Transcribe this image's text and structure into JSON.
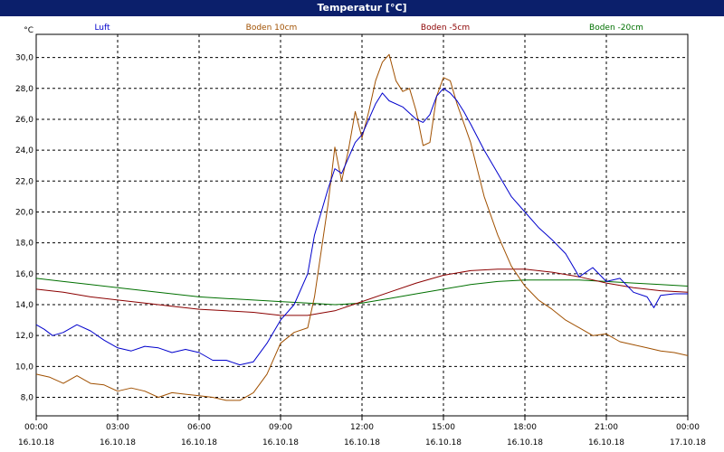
{
  "window": {
    "title": "Temperatur [°C]"
  },
  "chart_data": {
    "type": "line",
    "title": "Temperatur [°C]",
    "ylabel": "°C",
    "ylim": [
      6.8,
      31.5
    ],
    "xlim": [
      0,
      24
    ],
    "y_ticks": [
      "8,0",
      "10,0",
      "12,0",
      "14,0",
      "16,0",
      "18,0",
      "20,0",
      "22,0",
      "24,0",
      "26,0",
      "28,0",
      "30,0"
    ],
    "x_ticks": [
      {
        "time": "00:00",
        "date": "16.10.18"
      },
      {
        "time": "03:00",
        "date": "16.10.18"
      },
      {
        "time": "06:00",
        "date": "16.10.18"
      },
      {
        "time": "09:00",
        "date": "16.10.18"
      },
      {
        "time": "12:00",
        "date": "16.10.18"
      },
      {
        "time": "15:00",
        "date": "16.10.18"
      },
      {
        "time": "18:00",
        "date": "16.10.18"
      },
      {
        "time": "21:00",
        "date": "16.10.18"
      },
      {
        "time": "00:00",
        "date": "17.10.18"
      }
    ],
    "grid": true,
    "legend_position": "top",
    "series": [
      {
        "name": "Luft",
        "color": "#0000cc",
        "x": [
          0,
          0.3,
          0.6,
          1,
          1.5,
          2,
          2.5,
          3,
          3.5,
          4,
          4.5,
          5,
          5.5,
          6,
          6.5,
          7,
          7.5,
          8,
          8.5,
          9,
          9.5,
          10,
          10.25,
          10.5,
          10.75,
          11,
          11.25,
          11.5,
          11.75,
          12,
          12.25,
          12.5,
          12.75,
          13,
          13.5,
          14,
          14.25,
          14.5,
          14.75,
          15,
          15.25,
          15.5,
          15.75,
          16,
          16.5,
          17,
          17.5,
          18,
          18.5,
          19,
          19.5,
          20,
          20.5,
          21,
          21.5,
          22,
          22.5,
          22.75,
          23,
          23.5,
          24
        ],
        "y": [
          12.7,
          12.4,
          12.0,
          12.2,
          12.7,
          12.3,
          11.7,
          11.2,
          11.0,
          11.3,
          11.2,
          10.9,
          11.1,
          10.9,
          10.4,
          10.4,
          10.1,
          10.3,
          11.5,
          13.0,
          14.0,
          16.0,
          18.5,
          20.0,
          21.5,
          22.8,
          22.5,
          23.5,
          24.5,
          25.0,
          26.0,
          27.0,
          27.7,
          27.2,
          26.8,
          26.0,
          25.8,
          26.3,
          27.5,
          28.0,
          27.7,
          27.2,
          26.5,
          25.7,
          24.0,
          22.5,
          21.0,
          20.0,
          19.0,
          18.2,
          17.3,
          15.8,
          16.4,
          15.5,
          15.7,
          14.8,
          14.5,
          13.8,
          14.6,
          14.7,
          14.7
        ]
      },
      {
        "name": "Boden 10cm",
        "color": "#a05000",
        "x": [
          0,
          0.5,
          1,
          1.5,
          2,
          2.5,
          3,
          3.5,
          4,
          4.5,
          5,
          5.5,
          6,
          6.5,
          7,
          7.5,
          8,
          8.5,
          9,
          9.5,
          10,
          10.25,
          10.5,
          10.75,
          11,
          11.25,
          11.5,
          11.75,
          12,
          12.25,
          12.5,
          12.75,
          13,
          13.25,
          13.5,
          13.75,
          14,
          14.25,
          14.5,
          14.75,
          15,
          15.25,
          15.5,
          16,
          16.5,
          17,
          17.5,
          18,
          18.5,
          19,
          19.5,
          20,
          20.5,
          21,
          21.5,
          22,
          22.5,
          23,
          23.5,
          24
        ],
        "y": [
          9.5,
          9.3,
          8.9,
          9.4,
          8.9,
          8.8,
          8.4,
          8.6,
          8.4,
          8.0,
          8.3,
          8.2,
          8.1,
          8.0,
          7.8,
          7.8,
          8.3,
          9.5,
          11.5,
          12.2,
          12.5,
          14.5,
          17.5,
          20.5,
          24.2,
          22.0,
          24.0,
          26.5,
          24.8,
          26.5,
          28.5,
          29.7,
          30.2,
          28.5,
          27.8,
          28.0,
          26.5,
          24.3,
          24.5,
          27.5,
          28.7,
          28.5,
          27.0,
          24.5,
          21.0,
          18.5,
          16.5,
          15.2,
          14.3,
          13.7,
          13.0,
          12.5,
          12.0,
          12.1,
          11.6,
          11.4,
          11.2,
          11.0,
          10.9,
          10.7
        ]
      },
      {
        "name": "Boden -5cm",
        "color": "#8b0000",
        "x": [
          0,
          1,
          2,
          3,
          4,
          5,
          6,
          7,
          8,
          9,
          10,
          11,
          12,
          13,
          14,
          15,
          16,
          17,
          18,
          19,
          20,
          21,
          22,
          23,
          24
        ],
        "y": [
          15.0,
          14.8,
          14.5,
          14.3,
          14.1,
          13.9,
          13.7,
          13.6,
          13.5,
          13.3,
          13.3,
          13.6,
          14.2,
          14.8,
          15.4,
          15.9,
          16.2,
          16.3,
          16.3,
          16.1,
          15.8,
          15.4,
          15.1,
          14.9,
          14.8
        ]
      },
      {
        "name": "Boden -20cm",
        "color": "#007000",
        "x": [
          0,
          1,
          2,
          3,
          4,
          5,
          6,
          7,
          8,
          9,
          10,
          11,
          12,
          13,
          14,
          15,
          16,
          17,
          18,
          19,
          20,
          21,
          22,
          23,
          24
        ],
        "y": [
          15.7,
          15.5,
          15.3,
          15.1,
          14.9,
          14.7,
          14.5,
          14.4,
          14.3,
          14.2,
          14.1,
          14.0,
          14.1,
          14.4,
          14.7,
          15.0,
          15.3,
          15.5,
          15.6,
          15.6,
          15.6,
          15.5,
          15.4,
          15.3,
          15.2
        ]
      }
    ]
  }
}
